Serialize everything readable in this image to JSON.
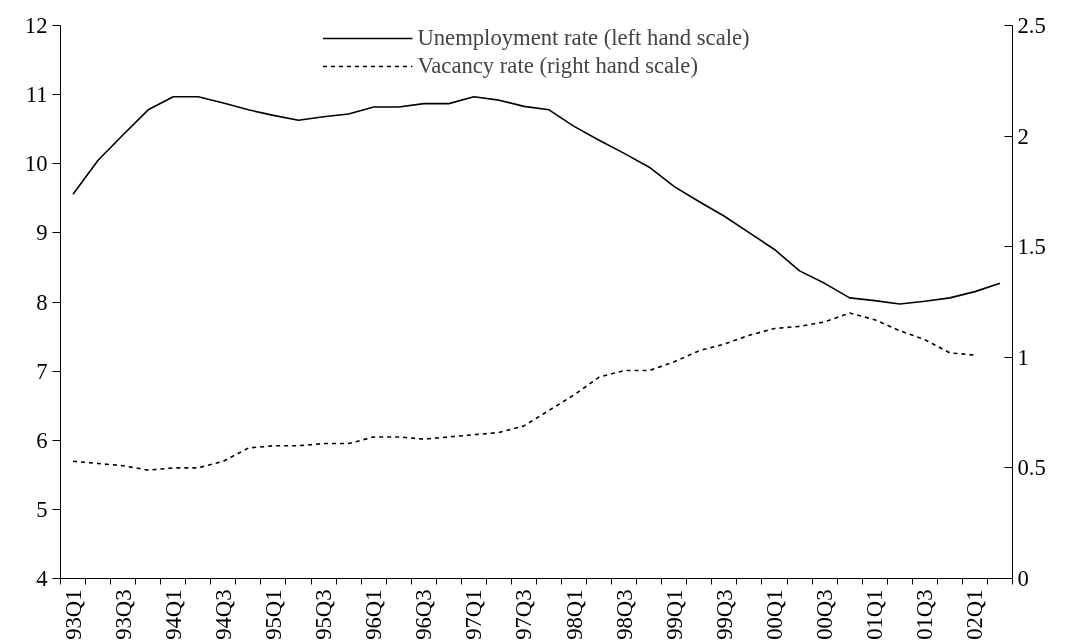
{
  "chart_data": {
    "type": "line",
    "categories": [
      "93Q1",
      null,
      "93Q3",
      null,
      "94Q1",
      null,
      "94Q3",
      null,
      "95Q1",
      null,
      "95Q3",
      null,
      "96Q1",
      null,
      "96Q3",
      null,
      "97Q1",
      null,
      "97Q3",
      null,
      "98Q1",
      null,
      "98Q3",
      null,
      "99Q1",
      null,
      "99Q3",
      null,
      "00Q1",
      null,
      "00Q3",
      null,
      "01Q1",
      null,
      "01Q3",
      null,
      "02Q1",
      null
    ],
    "series": [
      {
        "name": "Unemployment rate (left hand scale)",
        "color": "#000000",
        "line_style": "solid",
        "values": [
          9.56,
          10.05,
          10.42,
          10.78,
          10.97,
          10.97,
          10.88,
          10.78,
          10.7,
          10.63,
          10.68,
          10.72,
          10.82,
          10.82,
          10.87,
          10.87,
          10.97,
          10.92,
          10.83,
          10.78,
          10.54,
          10.34,
          10.15,
          9.95,
          9.67,
          9.45,
          9.24,
          9.0,
          8.76,
          8.45,
          8.27,
          8.06,
          8.02,
          7.97,
          8.01,
          8.06,
          8.15,
          8.27
        ]
      },
      {
        "name": "Vacancy rate (right hand scale)",
        "color": "#000000",
        "line_style": "dashed",
        "axis": "y2",
        "values": [
          0.53,
          0.52,
          0.51,
          0.49,
          0.5,
          0.5,
          0.53,
          0.59,
          0.6,
          0.6,
          0.61,
          0.61,
          0.64,
          0.64,
          0.63,
          0.64,
          0.65,
          0.66,
          0.69,
          0.76,
          0.83,
          0.91,
          0.94,
          0.94,
          0.98,
          1.03,
          1.06,
          1.1,
          1.13,
          1.14,
          1.16,
          1.2,
          1.17,
          1.12,
          1.08,
          1.02,
          1.01,
          null
        ]
      }
    ],
    "ylim": [
      4,
      12
    ],
    "yticks": [
      4,
      5,
      6,
      7,
      8,
      9,
      10,
      11,
      12
    ],
    "y2lim": [
      0,
      2.5
    ],
    "y2ticks": [
      0,
      0.5,
      1,
      1.5,
      2,
      2.5
    ],
    "grid": false,
    "legend": "top"
  }
}
